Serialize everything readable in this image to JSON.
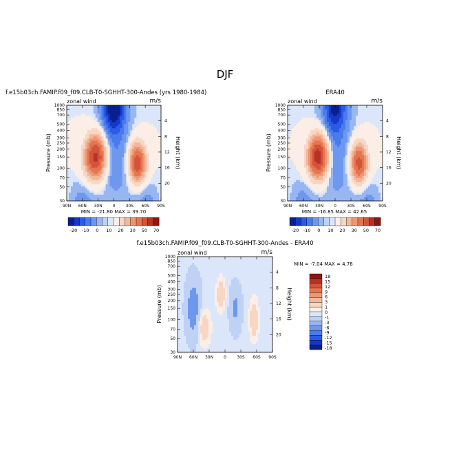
{
  "figure": {
    "title": "DJF"
  },
  "colors": {
    "neg": [
      "#0a1f8f",
      "#1538c8",
      "#2a5ae6",
      "#4a7bec",
      "#6e98ee",
      "#97b6f2",
      "#bfd2f6",
      "#dbe6fa"
    ],
    "pos": [
      "#faeee6",
      "#f7d7c3",
      "#f3b799",
      "#ee9672",
      "#e6744f",
      "#d4533a",
      "#b63224",
      "#8e1414"
    ]
  },
  "panels": [
    {
      "title": "f.e15b03ch.FAMIP.f09_f09.CLB-T0-SGHHT-300-Andes (yrs 1980-1984)",
      "variable": "zonal wind",
      "units": "m/s",
      "stats_line": "MIN = -21.80   MAX = 39.70",
      "yaxis_label": "Pressure (mb)",
      "y2axis_label": "Height (km)"
    },
    {
      "title": "ERA40",
      "variable": "zonal wind",
      "units": "m/s",
      "stats_line": "MIN = -16.85   MAX = 42.65",
      "yaxis_label": "Pressure (mb)",
      "y2axis_label": "Height (km)"
    },
    {
      "title": "f.e15b03ch.FAMIP.f09_f09.CLB-T0-SGHHT-300-Andes - ERA40",
      "variable": "zonal wind",
      "units": "m/s",
      "stats_line": "MIN = -7.04   MAX = 4.78",
      "yaxis_label": "Pressure (mb)",
      "y2axis_label": "Height (km)"
    }
  ],
  "axes": {
    "x_ticks": [
      "90N",
      "60N",
      "30N",
      "0",
      "30S",
      "60S",
      "90S"
    ],
    "pressure_ticks": [
      "30",
      "50",
      "70",
      "100",
      "150",
      "200",
      "250",
      "300",
      "400",
      "500",
      "700",
      "850",
      "1000"
    ],
    "height_ticks": [
      "20",
      "16",
      "12",
      "8",
      "4"
    ]
  },
  "colorbar_main": {
    "labels": [
      "-20",
      "-10",
      "0",
      "10",
      "20",
      "30",
      "50",
      "70"
    ]
  },
  "colorbar_diff": {
    "labels": [
      "18",
      "15",
      "12",
      "9",
      "6",
      "3",
      "1",
      "0",
      "-1",
      "-3",
      "-6",
      "-9",
      "-12",
      "-15",
      "-18"
    ]
  },
  "chart_data": [
    {
      "type": "heatmap",
      "title": "f.e15b03ch.FAMIP.f09_f09.CLB-T0-SGHHT-300-Andes (yrs 1980-1984)",
      "subtitle": "zonal wind",
      "units": "m/s",
      "xlabel": "",
      "ylabel": "Pressure (mb)",
      "y2label": "Height (km)",
      "xlim": [
        90,
        -90
      ],
      "ylim": [
        1000,
        30
      ],
      "yscale": "log",
      "min": -21.8,
      "max": 39.7,
      "jets": [
        {
          "lat": 35,
          "p": 200,
          "amp": 40,
          "sx": 14,
          "sy": 0.55
        },
        {
          "lat": -45,
          "p": 250,
          "amp": 34,
          "sx": 11,
          "sy": 0.5
        }
      ],
      "easterlies": [
        {
          "lat": 0,
          "p": 30,
          "amp": -24,
          "sx": 12,
          "sy": 0.6
        }
      ]
    },
    {
      "type": "heatmap",
      "title": "ERA40",
      "subtitle": "zonal wind",
      "units": "m/s",
      "xlabel": "",
      "ylabel": "Pressure (mb)",
      "y2label": "Height (km)",
      "xlim": [
        90,
        -90
      ],
      "ylim": [
        1000,
        30
      ],
      "yscale": "log",
      "min": -16.85,
      "max": 42.65,
      "jets": [
        {
          "lat": 32,
          "p": 200,
          "amp": 43,
          "sx": 13,
          "sy": 0.55
        },
        {
          "lat": -45,
          "p": 250,
          "amp": 32,
          "sx": 11,
          "sy": 0.5
        }
      ],
      "easterlies": [
        {
          "lat": 0,
          "p": 30,
          "amp": -18,
          "sx": 12,
          "sy": 0.6
        }
      ]
    },
    {
      "type": "heatmap",
      "title": "f.e15b03ch.FAMIP.f09_f09.CLB-T0-SGHHT-300-Andes - ERA40",
      "subtitle": "zonal wind",
      "units": "m/s",
      "xlabel": "",
      "ylabel": "Pressure (mb)",
      "y2label": "Height (km)",
      "xlim": [
        90,
        -90
      ],
      "ylim": [
        1000,
        30
      ],
      "yscale": "log",
      "min": -7.04,
      "max": 4.78,
      "diff_features": [
        {
          "lat": 40,
          "p": 400,
          "amp": 3,
          "sx": 8,
          "sy": 0.45
        },
        {
          "lat": 8,
          "p": 120,
          "amp": 3,
          "sx": 6,
          "sy": 0.4
        },
        {
          "lat": -55,
          "p": 300,
          "amp": 3,
          "sx": 6,
          "sy": 0.5
        },
        {
          "lat": 60,
          "p": 200,
          "amp": -4,
          "sx": 10,
          "sy": 0.8
        },
        {
          "lat": -20,
          "p": 200,
          "amp": -3,
          "sx": 8,
          "sy": 0.6
        }
      ]
    }
  ]
}
